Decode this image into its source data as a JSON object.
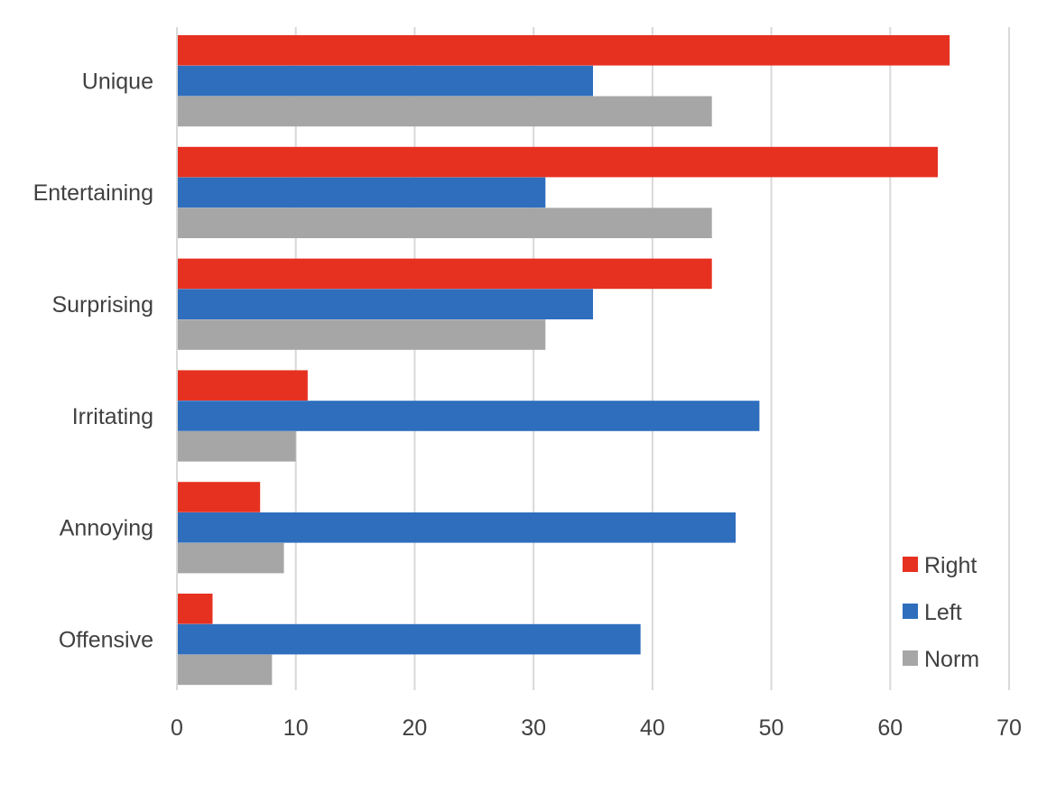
{
  "chart_data": {
    "type": "bar",
    "orientation": "horizontal",
    "categories": [
      "Unique",
      "Entertaining",
      "Surprising",
      "Irritating",
      "Annoying",
      "Offensive"
    ],
    "series": [
      {
        "name": "Right",
        "color": "#e63121",
        "values": [
          65,
          64,
          45,
          11,
          7,
          3
        ]
      },
      {
        "name": "Left",
        "color": "#2e6ebd",
        "values": [
          35,
          31,
          35,
          49,
          47,
          39
        ]
      },
      {
        "name": "Norm",
        "color": "#a6a6a6",
        "values": [
          45,
          45,
          31,
          10,
          9,
          8
        ]
      }
    ],
    "xlim": [
      0,
      70
    ],
    "xticks": [
      "0",
      "10",
      "20",
      "30",
      "40",
      "50",
      "60",
      "70"
    ],
    "grid": "vertical",
    "legend_position": "bottom-right",
    "title": "",
    "xlabel": "",
    "ylabel": ""
  }
}
